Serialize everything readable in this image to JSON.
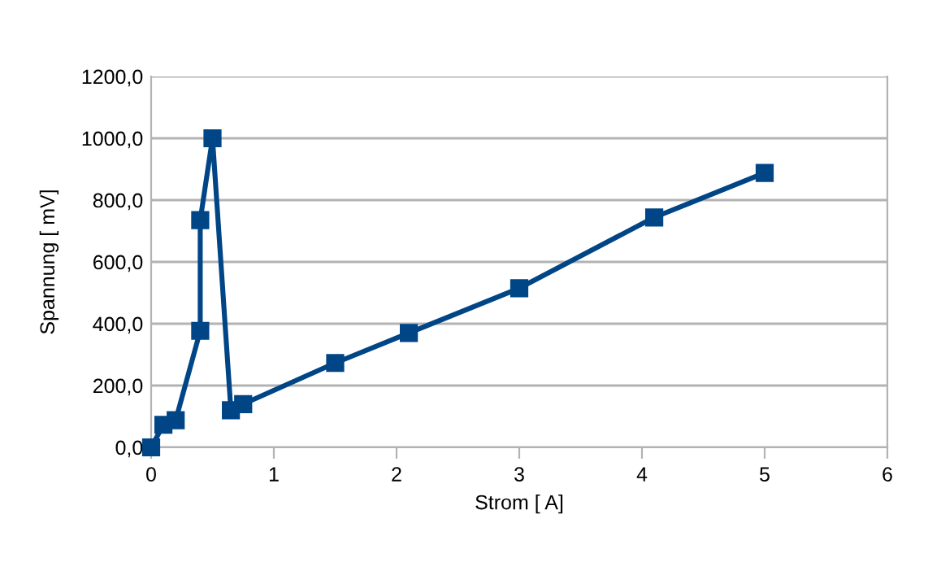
{
  "chart_data": {
    "type": "line",
    "xlabel": "Strom [ A]",
    "ylabel": "Spannung [ mV]",
    "x": [
      0,
      0.1,
      0.2,
      0.4,
      0.4,
      0.5,
      0.65,
      0.75,
      1.5,
      2.1,
      3.0,
      4.1,
      5.0
    ],
    "series": [
      {
        "color": "#004586",
        "values": [
          0,
          73,
          88,
          377,
          735,
          1000,
          120,
          140,
          273,
          370,
          515,
          744,
          888
        ]
      }
    ],
    "xlim": [
      0,
      6
    ],
    "xticks": [
      0,
      1,
      2,
      3,
      4,
      5,
      6
    ],
    "ylim": [
      0,
      1200
    ],
    "yticks": [
      {
        "value": 0,
        "label": "0,0"
      },
      {
        "value": 200,
        "label": "200,0"
      },
      {
        "value": 400,
        "label": "400,0"
      },
      {
        "value": 600,
        "label": "600,0"
      },
      {
        "value": 800,
        "label": "800,0"
      },
      {
        "value": 1000,
        "label": "1000,0"
      },
      {
        "value": 1200,
        "label": "1200,0"
      }
    ],
    "grid": "y",
    "marker": "square",
    "line_style": "solid"
  }
}
